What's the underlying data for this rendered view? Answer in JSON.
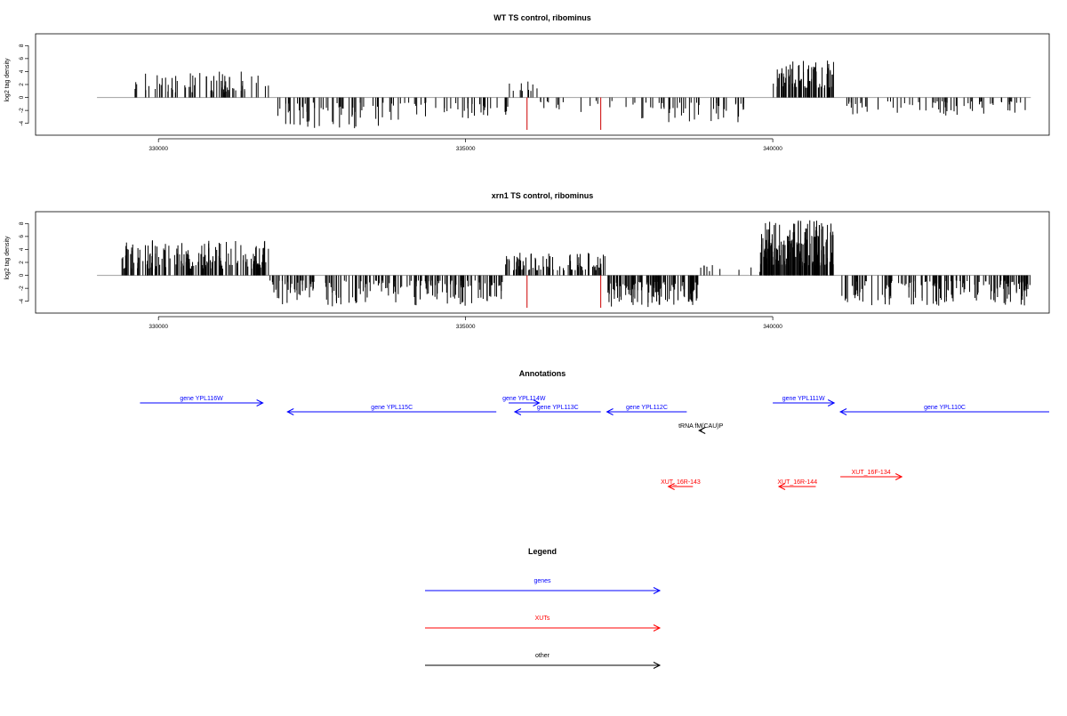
{
  "colors": {
    "gene": "#0000ff",
    "xut": "#ff0000",
    "other": "#000000",
    "signal": "#000000",
    "highlight": "#cc0000",
    "baseline": "#a0a0a0"
  },
  "chart_data": [
    {
      "type": "bar",
      "title": "WT TS control, ribominus",
      "ylabel": "log2 tag density",
      "xlim": [
        328000,
        344500
      ],
      "ylim": [
        -5,
        9
      ],
      "x_ticks": [
        330000,
        335000,
        340000
      ],
      "y_ticks": [
        -4,
        -2,
        0,
        2,
        4,
        6,
        8
      ],
      "baseline_range": [
        329000,
        344200
      ],
      "regions": [
        {
          "from": 329600,
          "to": 331800,
          "sign": 1,
          "n": 70,
          "min": 0.8,
          "max": 4.0
        },
        {
          "from": 331900,
          "to": 333700,
          "sign": -1,
          "n": 55,
          "min": 0.8,
          "max": 4.8
        },
        {
          "from": 333700,
          "to": 335700,
          "sign": -1,
          "n": 45,
          "min": 0.8,
          "max": 3.5
        },
        {
          "from": 335700,
          "to": 336200,
          "sign": 1,
          "n": 10,
          "min": 1.0,
          "max": 2.5
        },
        {
          "from": 336200,
          "to": 337600,
          "sign": -1,
          "n": 15,
          "min": 0.5,
          "max": 2.5
        },
        {
          "from": 337600,
          "to": 339600,
          "sign": -1,
          "n": 50,
          "min": 0.8,
          "max": 4.0
        },
        {
          "from": 340000,
          "to": 341000,
          "sign": 1,
          "n": 80,
          "min": 1.5,
          "max": 5.7
        },
        {
          "from": 341200,
          "to": 344200,
          "sign": -1,
          "n": 70,
          "min": 0.6,
          "max": 2.9
        }
      ],
      "red_bars": [
        {
          "x": 336000,
          "y": -5
        },
        {
          "x": 337200,
          "y": -5
        }
      ]
    },
    {
      "type": "bar",
      "title": "xrn1 TS control, ribominus",
      "ylabel": "log2 tag density",
      "xlim": [
        328000,
        344500
      ],
      "ylim": [
        -5,
        9
      ],
      "x_ticks": [
        330000,
        335000,
        340000
      ],
      "y_ticks": [
        -4,
        -2,
        0,
        2,
        4,
        6,
        8
      ],
      "baseline_range": [
        329000,
        344200
      ],
      "regions": [
        {
          "from": 329400,
          "to": 331800,
          "sign": 1,
          "n": 170,
          "min": 1.0,
          "max": 5.6
        },
        {
          "from": 331800,
          "to": 335600,
          "sign": -1,
          "n": 190,
          "min": 0.8,
          "max": 4.8
        },
        {
          "from": 335600,
          "to": 337300,
          "sign": 1,
          "n": 90,
          "min": 0.8,
          "max": 3.5
        },
        {
          "from": 337300,
          "to": 338800,
          "sign": -1,
          "n": 120,
          "min": 1.0,
          "max": 4.9
        },
        {
          "from": 338800,
          "to": 339800,
          "sign": 1,
          "n": 10,
          "min": 0.5,
          "max": 1.8
        },
        {
          "from": 339800,
          "to": 341000,
          "sign": 1,
          "n": 170,
          "min": 1.5,
          "max": 8.5
        },
        {
          "from": 341100,
          "to": 344200,
          "sign": -1,
          "n": 150,
          "min": 0.8,
          "max": 4.7
        }
      ],
      "red_bars": [
        {
          "x": 336000,
          "y": -5
        },
        {
          "x": 337200,
          "y": -5
        }
      ]
    }
  ],
  "annotations": {
    "title": "Annotations",
    "features": [
      {
        "label": "gene YPL116W",
        "kind": "gene",
        "start": 329700,
        "end": 331700,
        "strand": "+",
        "row": 0
      },
      {
        "label": "gene YPL115C",
        "kind": "gene",
        "start": 332100,
        "end": 335500,
        "strand": "-",
        "row": 1
      },
      {
        "label": "gene YPL114W",
        "kind": "gene",
        "start": 335700,
        "end": 336200,
        "strand": "+",
        "row": 0
      },
      {
        "label": "gene YPL113C",
        "kind": "gene",
        "start": 335800,
        "end": 337200,
        "strand": "-",
        "row": 1
      },
      {
        "label": "gene YPL112C",
        "kind": "gene",
        "start": 337300,
        "end": 338600,
        "strand": "-",
        "row": 1
      },
      {
        "label": "gene YPL111W",
        "kind": "gene",
        "start": 340000,
        "end": 341000,
        "strand": "+",
        "row": 0
      },
      {
        "label": "gene YPL110C",
        "kind": "gene",
        "start": 341100,
        "end": 344500,
        "strand": "-",
        "row": 1
      },
      {
        "label": "tRNA fM(CAU)P",
        "kind": "other",
        "start": 338800,
        "end": 338850,
        "strand": "-",
        "row": 2
      },
      {
        "label": "XUT_16R-143",
        "kind": "xut",
        "start": 338300,
        "end": 338700,
        "strand": "-",
        "row": 4
      },
      {
        "label": "XUT_16R-144",
        "kind": "xut",
        "start": 340100,
        "end": 340700,
        "strand": "-",
        "row": 4
      },
      {
        "label": "XUT_16F-134",
        "kind": "xut",
        "start": 341100,
        "end": 342100,
        "strand": "+",
        "row": 3
      }
    ]
  },
  "legend": {
    "title": "Legend",
    "items": [
      {
        "label": "genes",
        "kind": "gene"
      },
      {
        "label": "XUTs",
        "kind": "xut"
      },
      {
        "label": "other",
        "kind": "other"
      }
    ]
  }
}
